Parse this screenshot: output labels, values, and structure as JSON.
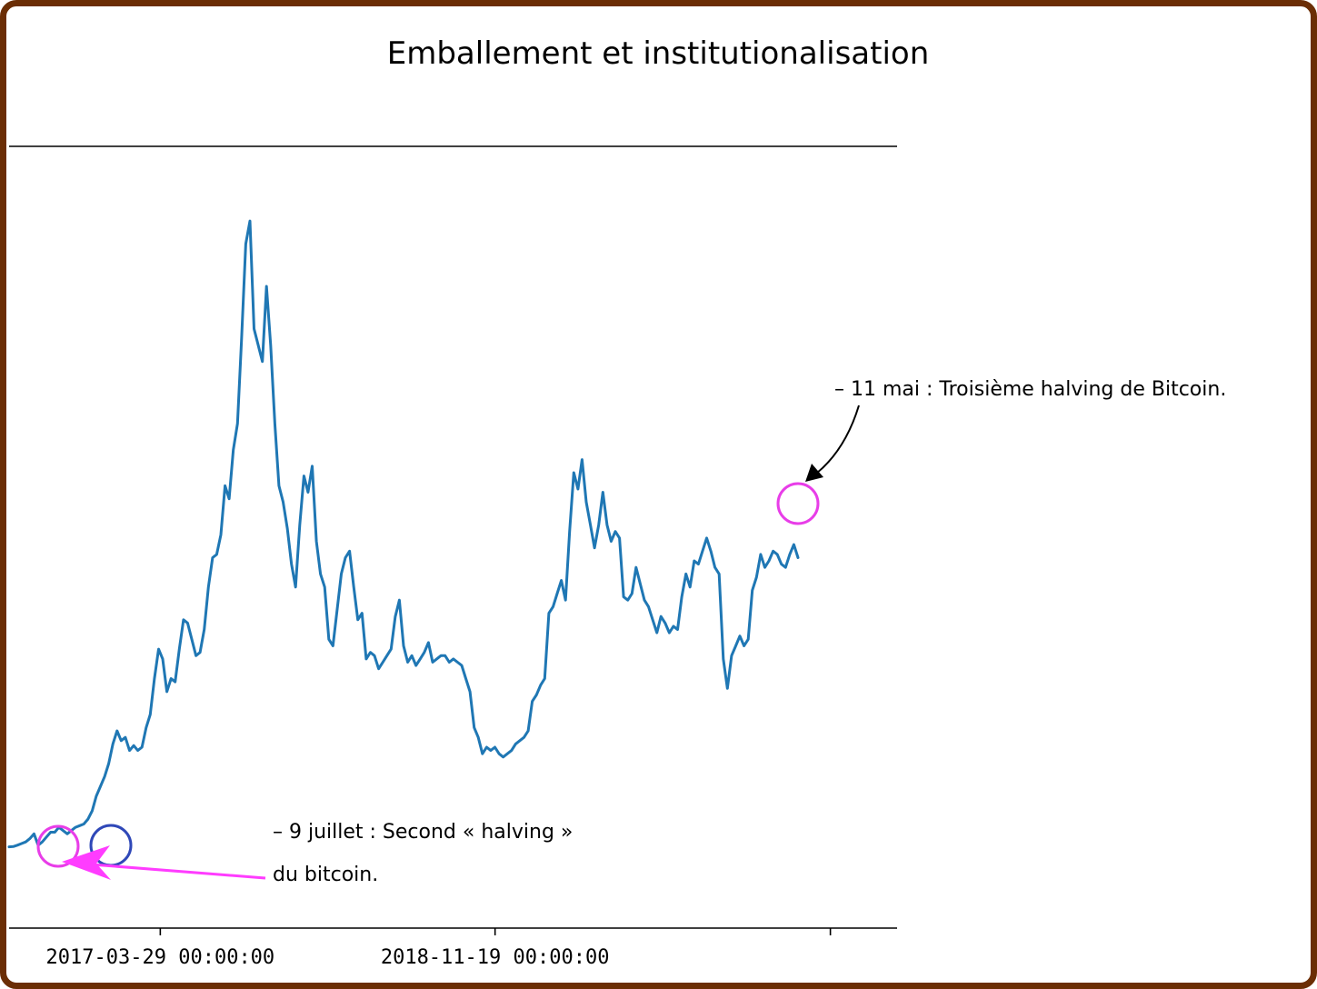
{
  "chart_data": {
    "type": "line",
    "title": "Emballement et institutionalisation",
    "xlabel": "",
    "ylabel": "",
    "series_color": "#1f77b4",
    "x_ticks": [
      "2017-03-29 00:00:00",
      "2018-11-19 00:00:00",
      ""
    ],
    "x_start": "2016-07-01",
    "x_end": "2020-05-15",
    "ylim": [
      0,
      21000
    ],
    "series": [
      {
        "name": "Bitcoin",
        "values": [
          650,
          660,
          700,
          750,
          800,
          900,
          1050,
          700,
          800,
          950,
          1100,
          1100,
          1250,
          1150,
          1050,
          1150,
          1250,
          1300,
          1350,
          1500,
          1750,
          2200,
          2500,
          2800,
          3200,
          3800,
          4200,
          3900,
          4000,
          3600,
          3750,
          3600,
          3700,
          4300,
          4700,
          5800,
          6700,
          6400,
          5400,
          5800,
          5700,
          6700,
          7600,
          7500,
          7000,
          6500,
          6600,
          7300,
          8600,
          9500,
          9600,
          10200,
          11700,
          11300,
          12800,
          13600,
          16200,
          19100,
          19800,
          16500,
          16000,
          15500,
          17800,
          16000,
          13600,
          11700,
          11200,
          10400,
          9300,
          8600,
          10500,
          12000,
          11500,
          12300,
          10000,
          9000,
          8600,
          7000,
          6800,
          7900,
          9000,
          9500,
          9700,
          8600,
          7600,
          7800,
          6400,
          6600,
          6500,
          6100,
          6300,
          6500,
          6700,
          7700,
          8200,
          6800,
          6300,
          6500,
          6200,
          6400,
          6600,
          6900,
          6300,
          6400,
          6500,
          6500,
          6300,
          6400,
          6300,
          6200,
          5800,
          5400,
          4300,
          4000,
          3500,
          3700,
          3600,
          3700,
          3500,
          3400,
          3500,
          3600,
          3800,
          3900,
          4000,
          4200,
          5100,
          5300,
          5600,
          5800,
          7800,
          8000,
          8400,
          8800,
          8200,
          10300,
          12100,
          11600,
          12500,
          11200,
          10500,
          9800,
          10500,
          11500,
          10500,
          10000,
          10300,
          10100,
          8300,
          8200,
          8400,
          9200,
          8700,
          8200,
          8000,
          7600,
          7200,
          7700,
          7500,
          7200,
          7400,
          7300,
          8300,
          9000,
          8600,
          9400,
          9300,
          9700,
          10100,
          9700,
          9200,
          9000,
          6400,
          5500,
          6500,
          6800,
          7100,
          6800,
          7000,
          8500,
          8900,
          9600,
          9200,
          9400,
          9700,
          9600,
          9300,
          9200,
          9600,
          9900,
          9500
        ]
      }
    ]
  },
  "annotations": {
    "top": "– 11 mai : Troisième halving de Bitcoin.",
    "bottom_line1": "– 9 juillet : Second « halving »",
    "bottom_line2": "du bitcoin."
  },
  "colors": {
    "frame": "#6b2e05",
    "line": "#1f77b4",
    "marker_magenta": "#e83de8",
    "marker_blue": "#2f48b8",
    "arrow_magenta": "#ff3cff",
    "arrow_black": "#000000"
  }
}
